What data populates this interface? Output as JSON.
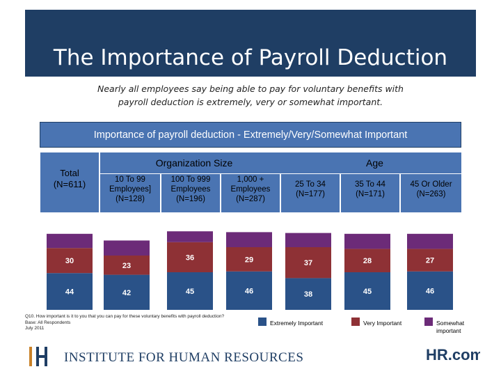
{
  "slide": {
    "title": "The Importance of Payroll Deduction",
    "subtitle": "Nearly all employees say being able to pay for voluntary benefits with payroll deduction is extremely, very or somewhat important.",
    "section_title": "Importance of payroll deduction - Extremely/Very/Somewhat Important",
    "group_org": "Organization Size",
    "group_age": "Age",
    "footnote_lines": [
      "Q10. How important is it to you that you can pay for these voluntary benefits with payroll deduction?",
      "Base: All Respondents",
      "July 2011"
    ],
    "logo_left_text": "INSTITUTE FOR HUMAN RESOURCES",
    "logo_left_mark": "IHR",
    "logo_right_text": "HR.com"
  },
  "colors": {
    "title_bar": "#1f3e64",
    "header_blue": "#4a74b2",
    "extremely": "#2a5288",
    "very": "#8e3135",
    "somewhat": "#6c2b78"
  },
  "chart_data": {
    "type": "bar",
    "stacked": true,
    "categories": [
      {
        "lines": [
          "Total",
          "(N=611)"
        ]
      },
      {
        "lines": [
          "10 To 99",
          "Employees]",
          "(N=128)"
        ]
      },
      {
        "lines": [
          "100 To 999",
          "Employees",
          "(N=196)"
        ]
      },
      {
        "lines": [
          "1,000 +",
          "Employees",
          "(N=287)"
        ]
      },
      {
        "lines": [
          "25 To 34",
          "(N=177)"
        ]
      },
      {
        "lines": [
          "35 To 44",
          "(N=171)"
        ]
      },
      {
        "lines": [
          "45 Or Older",
          "(N=263)"
        ]
      }
    ],
    "series": [
      {
        "name": "Extremely Important",
        "values": [
          44,
          42,
          45,
          46,
          38,
          45,
          46
        ]
      },
      {
        "name": "Very Important",
        "values": [
          30,
          23,
          36,
          29,
          37,
          28,
          27
        ]
      },
      {
        "name": "Somewhat important",
        "values": [
          17,
          18,
          13,
          18,
          17,
          18,
          18
        ]
      }
    ],
    "totals": [
      91,
      83,
      94,
      93,
      92,
      91,
      91
    ],
    "ylim": [
      0,
      100
    ]
  }
}
